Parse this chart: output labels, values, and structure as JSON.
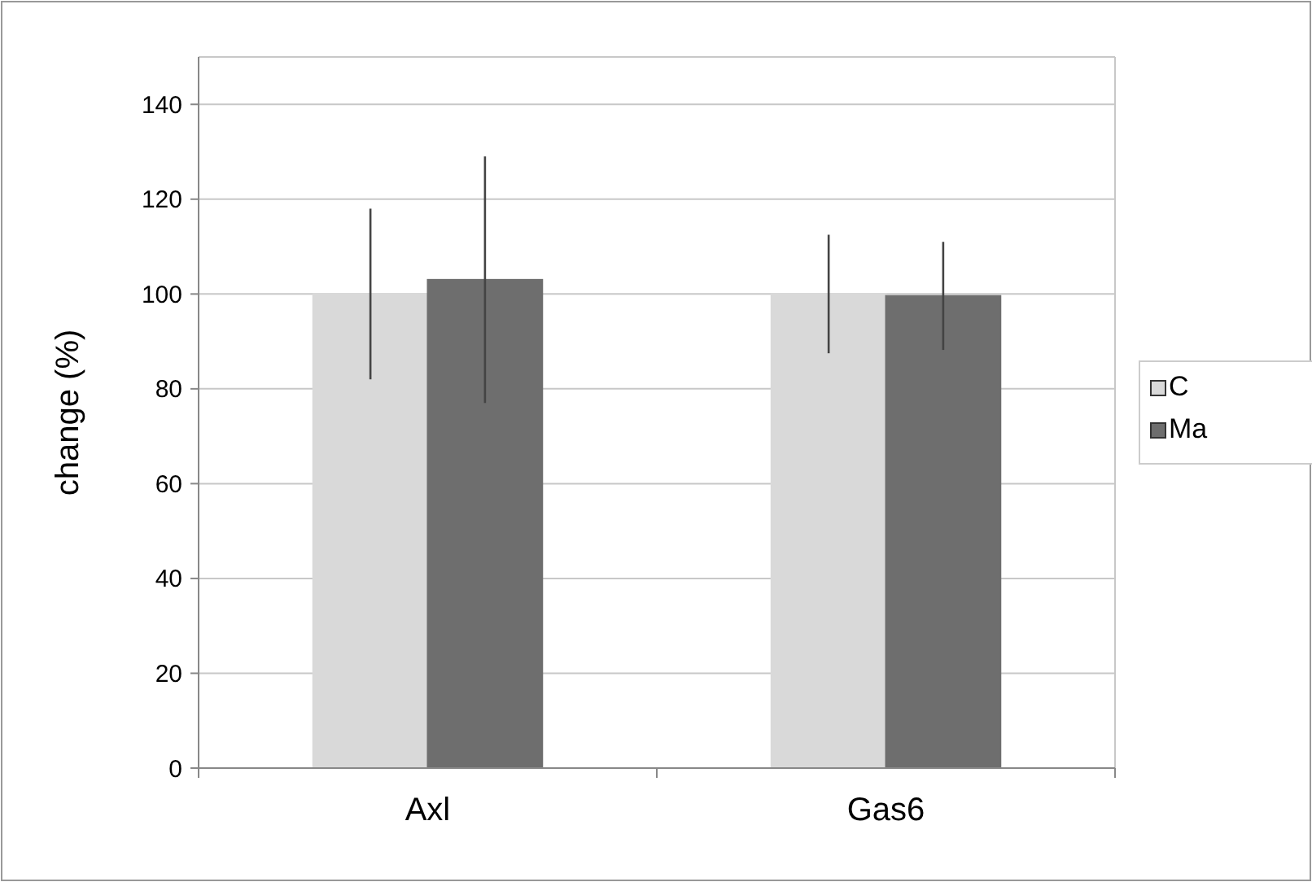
{
  "chart_data": {
    "type": "bar",
    "ylabel": "change (%)",
    "categories": [
      "Axl",
      "Gas6"
    ],
    "series": [
      {
        "name": "C",
        "color": "#d9d9d9",
        "values": [
          100,
          100
        ],
        "errors": [
          18,
          12.5
        ]
      },
      {
        "name": "Ma",
        "color": "#6e6e6e",
        "values": [
          103,
          99.6
        ],
        "errors": [
          26,
          11.4
        ]
      }
    ],
    "ylim": [
      0,
      150
    ],
    "yticks": [
      0,
      20,
      40,
      60,
      80,
      100,
      120,
      140
    ],
    "grid": "y",
    "legend": "right"
  }
}
